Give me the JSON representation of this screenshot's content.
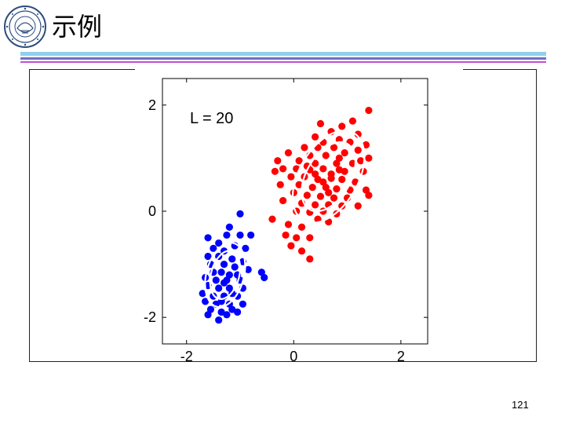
{
  "slide": {
    "title": "示例",
    "page_number": "121",
    "logo_icon": "university-seal-icon",
    "rule_colors": [
      "#8fd0ec",
      "#6e6ec8",
      "#c04fd0"
    ]
  },
  "chart_data": {
    "type": "scatter",
    "annotation": "L = 20",
    "xlim": [
      -2.45,
      2.5
    ],
    "ylim": [
      -2.5,
      2.5
    ],
    "x_ticks": [
      -2,
      0,
      2
    ],
    "y_ticks": [
      2,
      0,
      -2
    ],
    "x_tick_labels": [
      "-2",
      "0",
      "2"
    ],
    "y_tick_labels": [
      "2",
      "0",
      "-2"
    ],
    "grid": false,
    "series": [
      {
        "color": "#ff0000",
        "points": [
          [
            1.4,
            1.9
          ],
          [
            1.1,
            1.7
          ],
          [
            0.9,
            1.6
          ],
          [
            0.5,
            1.65
          ],
          [
            0.7,
            1.5
          ],
          [
            1.2,
            1.45
          ],
          [
            0.4,
            1.4
          ],
          [
            0.55,
            1.3
          ],
          [
            0.85,
            1.35
          ],
          [
            1.05,
            1.3
          ],
          [
            1.35,
            1.25
          ],
          [
            0.2,
            1.2
          ],
          [
            0.45,
            1.2
          ],
          [
            0.75,
            1.2
          ],
          [
            1.2,
            1.15
          ],
          [
            -0.1,
            1.1
          ],
          [
            0.3,
            1.05
          ],
          [
            0.6,
            1.05
          ],
          [
            0.95,
            1.1
          ],
          [
            1.4,
            1.0
          ],
          [
            -0.3,
            0.95
          ],
          [
            0.1,
            0.95
          ],
          [
            0.4,
            0.9
          ],
          [
            0.8,
            0.9
          ],
          [
            1.1,
            0.9
          ],
          [
            -0.2,
            0.8
          ],
          [
            0.05,
            0.8
          ],
          [
            0.3,
            0.78
          ],
          [
            0.55,
            0.8
          ],
          [
            1.3,
            0.75
          ],
          [
            -0.05,
            0.65
          ],
          [
            0.2,
            0.65
          ],
          [
            0.45,
            0.6
          ],
          [
            0.7,
            0.62
          ],
          [
            0.9,
            0.6
          ],
          [
            1.15,
            0.55
          ],
          [
            -0.25,
            0.5
          ],
          [
            0.1,
            0.5
          ],
          [
            0.35,
            0.45
          ],
          [
            0.6,
            0.45
          ],
          [
            0.8,
            0.42
          ],
          [
            1.05,
            0.4
          ],
          [
            1.35,
            0.4
          ],
          [
            0.0,
            0.35
          ],
          [
            0.25,
            0.3
          ],
          [
            0.5,
            0.28
          ],
          [
            0.75,
            0.25
          ],
          [
            1.0,
            0.25
          ],
          [
            1.4,
            0.3
          ],
          [
            -0.2,
            0.2
          ],
          [
            0.15,
            0.15
          ],
          [
            0.4,
            0.12
          ],
          [
            0.65,
            0.12
          ],
          [
            0.9,
            0.1
          ],
          [
            1.2,
            0.1
          ],
          [
            0.05,
            0.0
          ],
          [
            0.3,
            -0.02
          ],
          [
            0.55,
            0.0
          ],
          [
            0.8,
            -0.05
          ],
          [
            0.45,
            -0.15
          ],
          [
            0.65,
            -0.2
          ],
          [
            -0.1,
            -0.25
          ],
          [
            0.15,
            -0.3
          ],
          [
            -0.4,
            -0.15
          ],
          [
            -0.15,
            -0.45
          ],
          [
            0.05,
            -0.5
          ],
          [
            -0.05,
            -0.65
          ],
          [
            0.3,
            -0.5
          ],
          [
            0.15,
            -0.75
          ],
          [
            0.3,
            -0.9
          ],
          [
            0.7,
            0.7
          ],
          [
            0.85,
            0.78
          ],
          [
            0.55,
            0.55
          ],
          [
            0.95,
            0.75
          ],
          [
            0.4,
            0.7
          ],
          [
            0.65,
            0.35
          ],
          [
            0.25,
            0.85
          ],
          [
            1.25,
            0.95
          ],
          [
            0.85,
            1.0
          ],
          [
            -0.35,
            0.75
          ]
        ]
      },
      {
        "color": "#0000ff",
        "points": [
          [
            -1.0,
            -0.05
          ],
          [
            -1.2,
            -0.3
          ],
          [
            -1.25,
            -0.45
          ],
          [
            -1.0,
            -0.45
          ],
          [
            -0.8,
            -0.45
          ],
          [
            -1.6,
            -0.5
          ],
          [
            -1.4,
            -0.6
          ],
          [
            -1.1,
            -0.65
          ],
          [
            -0.9,
            -0.7
          ],
          [
            -1.5,
            -0.7
          ],
          [
            -1.3,
            -0.75
          ],
          [
            -1.6,
            -0.85
          ],
          [
            -1.4,
            -0.85
          ],
          [
            -1.15,
            -0.9
          ],
          [
            -0.95,
            -0.95
          ],
          [
            -1.55,
            -1.0
          ],
          [
            -1.3,
            -1.0
          ],
          [
            -1.1,
            -1.05
          ],
          [
            -0.85,
            -1.1
          ],
          [
            -1.5,
            -1.15
          ],
          [
            -1.35,
            -1.15
          ],
          [
            -1.2,
            -1.2
          ],
          [
            -1.05,
            -1.2
          ],
          [
            -0.6,
            -1.15
          ],
          [
            -1.65,
            -1.25
          ],
          [
            -1.45,
            -1.3
          ],
          [
            -1.25,
            -1.3
          ],
          [
            -1.0,
            -1.3
          ],
          [
            -0.55,
            -1.25
          ],
          [
            -1.6,
            -1.4
          ],
          [
            -1.4,
            -1.45
          ],
          [
            -1.2,
            -1.45
          ],
          [
            -0.95,
            -1.45
          ],
          [
            -1.7,
            -1.55
          ],
          [
            -1.5,
            -1.6
          ],
          [
            -1.3,
            -1.6
          ],
          [
            -1.05,
            -1.6
          ],
          [
            -1.65,
            -1.7
          ],
          [
            -1.45,
            -1.75
          ],
          [
            -1.2,
            -1.75
          ],
          [
            -0.95,
            -1.75
          ],
          [
            -1.55,
            -1.85
          ],
          [
            -1.35,
            -1.9
          ],
          [
            -1.15,
            -1.85
          ],
          [
            -1.6,
            -1.95
          ],
          [
            -1.4,
            -2.05
          ],
          [
            -1.25,
            -1.95
          ],
          [
            -1.05,
            -1.9
          ],
          [
            -1.3,
            -1.35
          ],
          [
            -1.15,
            -1.55
          ],
          [
            -1.35,
            -1.7
          ]
        ]
      }
    ],
    "ellipses": [
      {
        "series": "red",
        "center": [
          0.65,
          0.65
        ],
        "rx": 0.55,
        "ry": 0.95,
        "angle_deg": 30
      },
      {
        "series": "blue",
        "center": [
          -1.28,
          -1.2
        ],
        "rx": 0.35,
        "ry": 0.62,
        "angle_deg": 15
      }
    ]
  }
}
